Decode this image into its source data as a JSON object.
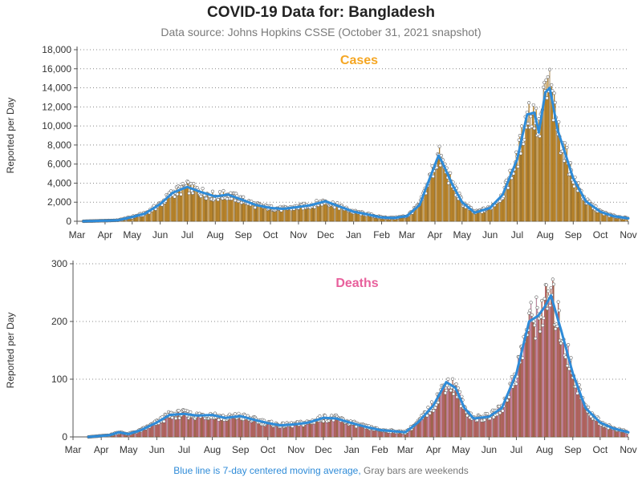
{
  "title": "COVID-19 Data for: Bangladesh",
  "subtitle": "Data source: Johns Hopkins CSSE (October 31, 2021 snapshot)",
  "footer": {
    "blue_text": "Blue line is 7-day centered moving average,",
    "gray_text": "Gray bars are weekends"
  },
  "colors": {
    "cases_bar": "#f5a623",
    "deaths_bar": "#e8609c",
    "cases_title": "#f5a623",
    "deaths_title": "#e8609c",
    "moving_average": "#2e8bd8",
    "weekend_bar": "#999999"
  },
  "chart_data": [
    {
      "type": "bar",
      "title": "Cases",
      "ylabel": "Reported per Day",
      "xlabel": "",
      "ylim": [
        0,
        18000
      ],
      "yticks": [
        0,
        2000,
        4000,
        6000,
        8000,
        10000,
        12000,
        14000,
        16000,
        18000
      ],
      "ytick_labels": [
        "0",
        "2,000",
        "4,000",
        "6,000",
        "8,000",
        "10,000",
        "12,000",
        "14,000",
        "16,000",
        "18,000"
      ],
      "x_tick_labels": [
        "Mar",
        "Apr",
        "May",
        "Jun",
        "Jul",
        "Aug",
        "Sep",
        "Oct",
        "Nov",
        "Dec",
        "Jan",
        "Feb",
        "Mar",
        "Apr",
        "May",
        "Jun",
        "Jul",
        "Aug",
        "Sep",
        "Oct",
        "Nov"
      ],
      "x_range": [
        "2020-03-01",
        "2021-11-01"
      ],
      "grid": "horizontal dotted",
      "series_name": "Cases",
      "moving_average_anchors": [
        [
          "2020-03-08",
          0
        ],
        [
          "2020-04-15",
          100
        ],
        [
          "2020-05-01",
          450
        ],
        [
          "2020-05-15",
          800
        ],
        [
          "2020-06-01",
          1800
        ],
        [
          "2020-06-15",
          3000
        ],
        [
          "2020-07-01",
          3600
        ],
        [
          "2020-07-15",
          3100
        ],
        [
          "2020-08-01",
          2600
        ],
        [
          "2020-08-15",
          2800
        ],
        [
          "2020-09-01",
          2200
        ],
        [
          "2020-09-15",
          1700
        ],
        [
          "2020-10-01",
          1400
        ],
        [
          "2020-10-15",
          1300
        ],
        [
          "2020-11-01",
          1500
        ],
        [
          "2020-11-15",
          1700
        ],
        [
          "2020-12-01",
          2100
        ],
        [
          "2020-12-15",
          1600
        ],
        [
          "2021-01-01",
          1000
        ],
        [
          "2021-01-15",
          750
        ],
        [
          "2021-02-01",
          400
        ],
        [
          "2021-02-15",
          350
        ],
        [
          "2021-03-01",
          550
        ],
        [
          "2021-03-15",
          1700
        ],
        [
          "2021-03-25",
          4200
        ],
        [
          "2021-04-05",
          6900
        ],
        [
          "2021-04-10",
          6000
        ],
        [
          "2021-04-20",
          3900
        ],
        [
          "2021-05-01",
          2000
        ],
        [
          "2021-05-15",
          900
        ],
        [
          "2021-06-01",
          1400
        ],
        [
          "2021-06-15",
          2800
        ],
        [
          "2021-07-01",
          6500
        ],
        [
          "2021-07-12",
          11200
        ],
        [
          "2021-07-20",
          11400
        ],
        [
          "2021-07-25",
          9300
        ],
        [
          "2021-08-01",
          13500
        ],
        [
          "2021-08-06",
          14000
        ],
        [
          "2021-08-15",
          9500
        ],
        [
          "2021-09-01",
          4500
        ],
        [
          "2021-09-15",
          2100
        ],
        [
          "2021-10-01",
          1000
        ],
        [
          "2021-10-15",
          550
        ],
        [
          "2021-11-01",
          300
        ]
      ]
    },
    {
      "type": "bar",
      "title": "Deaths",
      "ylabel": "Reported per Day",
      "xlabel": "",
      "ylim": [
        0,
        300
      ],
      "yticks": [
        0,
        100,
        200,
        300
      ],
      "ytick_labels": [
        "0",
        "100",
        "200",
        "300"
      ],
      "x_tick_labels": [
        "Mar",
        "Apr",
        "May",
        "Jun",
        "Jul",
        "Aug",
        "Sep",
        "Oct",
        "Nov",
        "Dec",
        "Jan",
        "Feb",
        "Mar",
        "Apr",
        "May",
        "Jun",
        "Jul",
        "Aug",
        "Sep",
        "Oct",
        "Nov"
      ],
      "x_range": [
        "2020-03-01",
        "2021-11-01"
      ],
      "grid": "horizontal dotted",
      "series_name": "Deaths",
      "moving_average_anchors": [
        [
          "2020-03-18",
          0
        ],
        [
          "2020-04-10",
          3
        ],
        [
          "2020-04-20",
          8
        ],
        [
          "2020-05-01",
          5
        ],
        [
          "2020-05-15",
          12
        ],
        [
          "2020-06-01",
          25
        ],
        [
          "2020-06-15",
          38
        ],
        [
          "2020-07-01",
          40
        ],
        [
          "2020-07-15",
          37
        ],
        [
          "2020-08-01",
          38
        ],
        [
          "2020-08-15",
          33
        ],
        [
          "2020-09-01",
          36
        ],
        [
          "2020-09-15",
          30
        ],
        [
          "2020-10-01",
          24
        ],
        [
          "2020-10-15",
          20
        ],
        [
          "2020-11-01",
          22
        ],
        [
          "2020-11-15",
          25
        ],
        [
          "2020-12-01",
          33
        ],
        [
          "2020-12-15",
          32
        ],
        [
          "2021-01-01",
          24
        ],
        [
          "2021-01-15",
          18
        ],
        [
          "2021-02-01",
          12
        ],
        [
          "2021-02-15",
          10
        ],
        [
          "2021-03-01",
          8
        ],
        [
          "2021-03-15",
          25
        ],
        [
          "2021-04-01",
          55
        ],
        [
          "2021-04-15",
          95
        ],
        [
          "2021-04-25",
          85
        ],
        [
          "2021-05-05",
          50
        ],
        [
          "2021-05-15",
          32
        ],
        [
          "2021-06-01",
          35
        ],
        [
          "2021-06-15",
          50
        ],
        [
          "2021-07-01",
          110
        ],
        [
          "2021-07-15",
          200
        ],
        [
          "2021-07-25",
          210
        ],
        [
          "2021-08-01",
          225
        ],
        [
          "2021-08-08",
          245
        ],
        [
          "2021-08-20",
          180
        ],
        [
          "2021-09-01",
          110
        ],
        [
          "2021-09-15",
          50
        ],
        [
          "2021-10-01",
          25
        ],
        [
          "2021-10-15",
          15
        ],
        [
          "2021-11-01",
          8
        ]
      ]
    }
  ]
}
